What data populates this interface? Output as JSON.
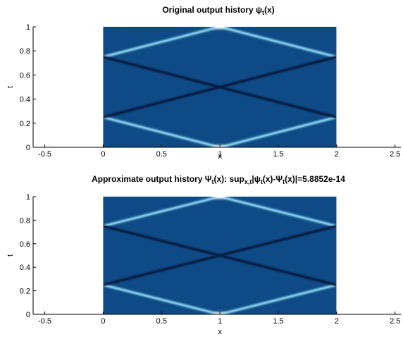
{
  "chart_data": [
    {
      "type": "heatmap",
      "title": {
        "parts": [
          {
            "t": "Original output history ψ"
          },
          {
            "t": "t",
            "sub": true
          },
          {
            "t": "(x)"
          }
        ]
      },
      "xlabel": "x",
      "ylabel": "t",
      "xlim": [
        -0.6,
        2.55
      ],
      "ylim": [
        0,
        1
      ],
      "xticks": [
        -0.5,
        0,
        0.5,
        1,
        1.5,
        2,
        2.5
      ],
      "xtick_labels": [
        "-0.5",
        "0",
        "0.5",
        "1",
        "1.5",
        "2",
        "2.5"
      ],
      "yticks": [
        0,
        0.2,
        0.4,
        0.6,
        0.8,
        1
      ],
      "ytick_labels": [
        "0",
        "0.2",
        "0.4",
        "0.6",
        "0.8",
        "1"
      ],
      "data_extent": {
        "x": [
          0,
          2
        ],
        "t": [
          0,
          1
        ]
      },
      "colormap": "blue",
      "colors": {
        "background": "#0e4a86",
        "dark": "#041a3a",
        "bright": "#8ad4ee",
        "peak": "#ffffff"
      }
    },
    {
      "type": "heatmap",
      "title": {
        "parts": [
          {
            "t": "Approximate output history Ψ"
          },
          {
            "t": "t",
            "sub": true
          },
          {
            "t": "(x): sup"
          },
          {
            "t": "x,t",
            "sub": true
          },
          {
            "t": "|ψ"
          },
          {
            "t": "t",
            "sub": true
          },
          {
            "t": "(x)-Ψ"
          },
          {
            "t": "t",
            "sub": true
          },
          {
            "t": "(x)|=5.8852e-14"
          }
        ]
      },
      "xlabel": "x",
      "ylabel": "t",
      "xlim": [
        -0.6,
        2.55
      ],
      "ylim": [
        0,
        1
      ],
      "xticks": [
        -0.5,
        0,
        0.5,
        1,
        1.5,
        2,
        2.5
      ],
      "xtick_labels": [
        "-0.5",
        "0",
        "0.5",
        "1",
        "1.5",
        "2",
        "2.5"
      ],
      "yticks": [
        0,
        0.2,
        0.4,
        0.6,
        0.8,
        1
      ],
      "ytick_labels": [
        "0",
        "0.2",
        "0.4",
        "0.6",
        "0.8",
        "1"
      ],
      "data_extent": {
        "x": [
          0,
          2
        ],
        "t": [
          0,
          1
        ]
      },
      "colormap": "blue",
      "colors": {
        "background": "#0e4a86",
        "dark": "#041a3a",
        "bright": "#8ad4ee",
        "peak": "#ffffff"
      }
    }
  ]
}
